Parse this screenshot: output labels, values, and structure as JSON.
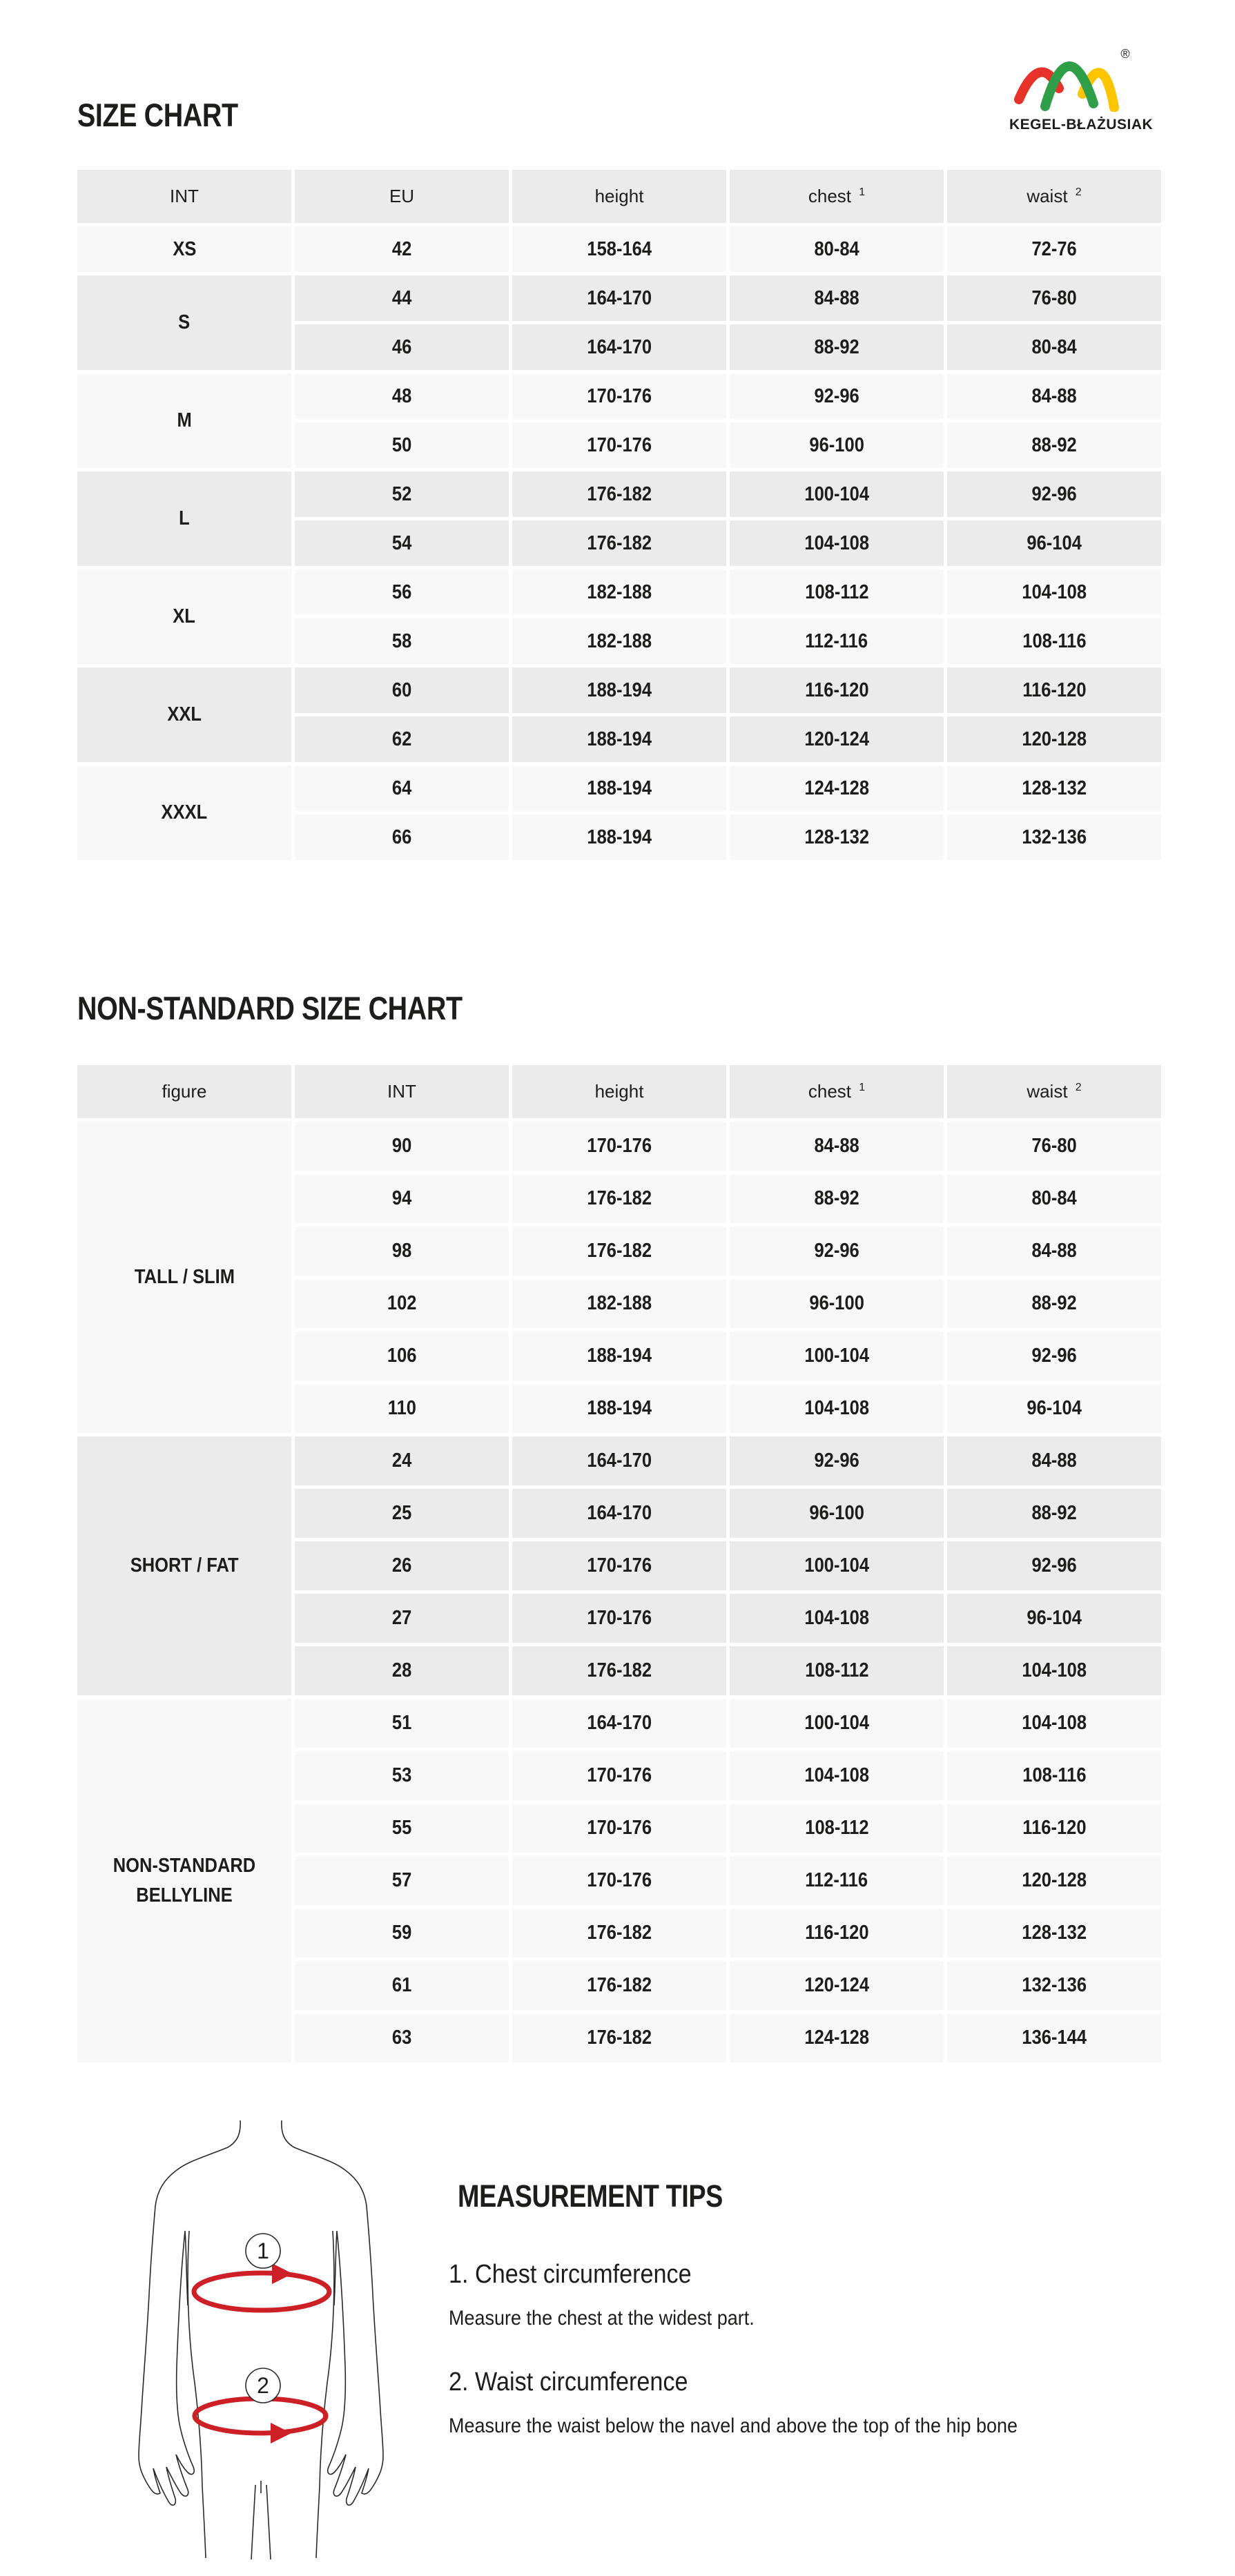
{
  "page": {
    "title_size_chart": "SIZE CHART",
    "title_nonstandard": "NON-STANDARD SIZE CHART"
  },
  "logo": {
    "brand": "KEGEL-BŁAŻUSIAK",
    "registered": "®"
  },
  "colors": {
    "cell_gray": "#ebebeb",
    "cell_light": "#f8f8f8",
    "accent_red": "#cd2026",
    "logo_red": "#e63229",
    "logo_green": "#2f9e49",
    "logo_yellow": "#fdc400",
    "text_dark": "#1d1d1b"
  },
  "size_chart": {
    "headers": [
      "INT",
      "EU",
      "height",
      "chest",
      "waist"
    ],
    "sups": [
      "",
      "",
      "",
      "1",
      "2"
    ],
    "groups": [
      {
        "label": "XS",
        "shade": "light",
        "rows": [
          [
            "42",
            "158-164",
            "80-84",
            "72-76"
          ]
        ]
      },
      {
        "label": "S",
        "shade": "dark",
        "rows": [
          [
            "44",
            "164-170",
            "84-88",
            "76-80"
          ],
          [
            "46",
            "164-170",
            "88-92",
            "80-84"
          ]
        ]
      },
      {
        "label": "M",
        "shade": "light",
        "rows": [
          [
            "48",
            "170-176",
            "92-96",
            "84-88"
          ],
          [
            "50",
            "170-176",
            "96-100",
            "88-92"
          ]
        ]
      },
      {
        "label": "L",
        "shade": "dark",
        "rows": [
          [
            "52",
            "176-182",
            "100-104",
            "92-96"
          ],
          [
            "54",
            "176-182",
            "104-108",
            "96-104"
          ]
        ]
      },
      {
        "label": "XL",
        "shade": "light",
        "rows": [
          [
            "56",
            "182-188",
            "108-112",
            "104-108"
          ],
          [
            "58",
            "182-188",
            "112-116",
            "108-116"
          ]
        ]
      },
      {
        "label": "XXL",
        "shade": "dark",
        "rows": [
          [
            "60",
            "188-194",
            "116-120",
            "116-120"
          ],
          [
            "62",
            "188-194",
            "120-124",
            "120-128"
          ]
        ]
      },
      {
        "label": "XXXL",
        "shade": "light",
        "rows": [
          [
            "64",
            "188-194",
            "124-128",
            "128-132"
          ],
          [
            "66",
            "188-194",
            "128-132",
            "132-136"
          ]
        ]
      }
    ]
  },
  "nonstandard_chart": {
    "headers": [
      "figure",
      "INT",
      "height",
      "chest",
      "waist"
    ],
    "sups": [
      "",
      "",
      "",
      "1",
      "2"
    ],
    "groups": [
      {
        "label": "TALL / SLIM",
        "shade": "light",
        "rows": [
          [
            "90",
            "170-176",
            "84-88",
            "76-80"
          ],
          [
            "94",
            "176-182",
            "88-92",
            "80-84"
          ],
          [
            "98",
            "176-182",
            "92-96",
            "84-88"
          ],
          [
            "102",
            "182-188",
            "96-100",
            "88-92"
          ],
          [
            "106",
            "188-194",
            "100-104",
            "92-96"
          ],
          [
            "110",
            "188-194",
            "104-108",
            "96-104"
          ]
        ]
      },
      {
        "label": "SHORT / FAT",
        "shade": "dark",
        "rows": [
          [
            "24",
            "164-170",
            "92-96",
            "84-88"
          ],
          [
            "25",
            "164-170",
            "96-100",
            "88-92"
          ],
          [
            "26",
            "170-176",
            "100-104",
            "92-96"
          ],
          [
            "27",
            "170-176",
            "104-108",
            "96-104"
          ],
          [
            "28",
            "176-182",
            "108-112",
            "104-108"
          ]
        ]
      },
      {
        "label": "NON-STANDARD BELLYLINE",
        "shade": "light",
        "rows": [
          [
            "51",
            "164-170",
            "100-104",
            "104-108"
          ],
          [
            "53",
            "170-176",
            "104-108",
            "108-116"
          ],
          [
            "55",
            "170-176",
            "108-112",
            "116-120"
          ],
          [
            "57",
            "170-176",
            "112-116",
            "120-128"
          ],
          [
            "59",
            "176-182",
            "116-120",
            "128-132"
          ],
          [
            "61",
            "176-182",
            "120-124",
            "132-136"
          ],
          [
            "63",
            "176-182",
            "124-128",
            "136-144"
          ]
        ]
      }
    ]
  },
  "figure": {
    "chest_marker": "1",
    "waist_marker": "2"
  },
  "measurement_tips": {
    "title": "MEASUREMENT TIPS",
    "items": [
      {
        "heading": "1. Chest circumference",
        "text": "Measure the chest at the widest part."
      },
      {
        "heading": "2. Waist circumference",
        "text": "Measure the waist below the navel and above the top of the hip bone"
      }
    ]
  }
}
